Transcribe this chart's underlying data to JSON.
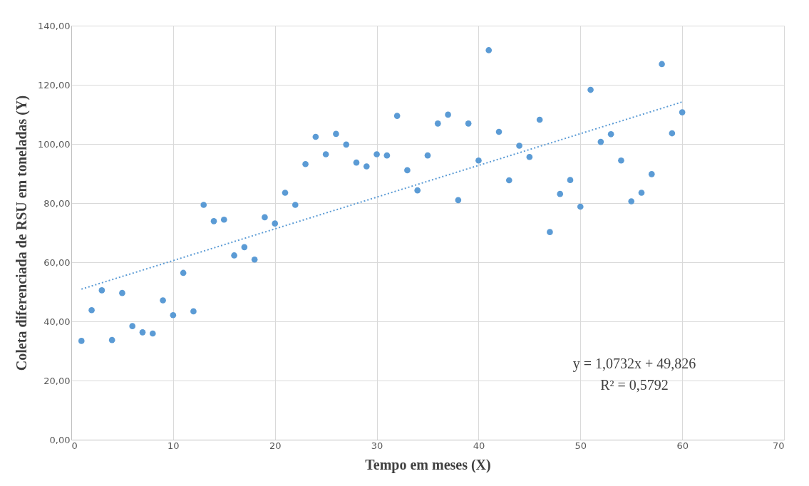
{
  "chart_data": {
    "type": "scatter",
    "xlabel": "Tempo  em meses (X)",
    "ylabel": "Coleta diferenciada de RSU em toneladas (Y)",
    "xlim": [
      0,
      70
    ],
    "xticks": [
      0,
      10,
      20,
      30,
      40,
      50,
      60,
      70
    ],
    "ylim": [
      0,
      140
    ],
    "yticks": [
      {
        "value": 0,
        "label": "0,00"
      },
      {
        "value": 20,
        "label": "20,00"
      },
      {
        "value": 40,
        "label": "40,00"
      },
      {
        "value": 60,
        "label": "60,00"
      },
      {
        "value": 80,
        "label": "80,00"
      },
      {
        "value": 100,
        "label": "100,00"
      },
      {
        "value": 120,
        "label": "120,00"
      },
      {
        "value": 140,
        "label": "140,00"
      }
    ],
    "grid": true,
    "annotations": [
      "y = 1,0732x + 49,826",
      "R² = 0,5792"
    ],
    "series": [
      {
        "color": "#5b9bd5",
        "marker": "circle",
        "x": [
          1,
          2,
          3,
          4,
          5,
          6,
          7,
          8,
          9,
          10,
          11,
          12,
          13,
          14,
          15,
          16,
          17,
          18,
          19,
          20,
          21,
          22,
          23,
          24,
          25,
          26,
          27,
          28,
          29,
          30,
          31,
          32,
          33,
          34,
          35,
          36,
          37,
          38,
          39,
          40,
          41,
          42,
          43,
          44,
          45,
          46,
          47,
          48,
          49,
          50,
          51,
          52,
          53,
          54,
          55,
          56,
          57,
          58,
          59,
          60
        ],
        "values": [
          33.4,
          43.8,
          50.5,
          33.7,
          49.6,
          38.4,
          36.3,
          35.9,
          47.1,
          42.1,
          56.4,
          43.4,
          79.4,
          73.9,
          74.4,
          62.3,
          65.1,
          60.9,
          75.2,
          73.1,
          83.5,
          79.4,
          93.2,
          102.4,
          96.5,
          103.4,
          99.8,
          93.7,
          92.4,
          96.5,
          96.1,
          109.5,
          91.1,
          84.3,
          96.1,
          106.9,
          109.9,
          81.0,
          106.9,
          94.4,
          131.7,
          104.1,
          87.7,
          99.4,
          95.6,
          108.2,
          70.2,
          83.1,
          87.8,
          78.8,
          118.3,
          100.7,
          103.3,
          94.4,
          80.6,
          83.5,
          89.8,
          127.0,
          103.6,
          110.7
        ]
      },
      {
        "type": "line",
        "color": "#5b9bd5",
        "line_style": "dotted",
        "marker": "none",
        "x": [
          1,
          60
        ],
        "values": [
          50.9,
          114.2
        ]
      }
    ]
  }
}
